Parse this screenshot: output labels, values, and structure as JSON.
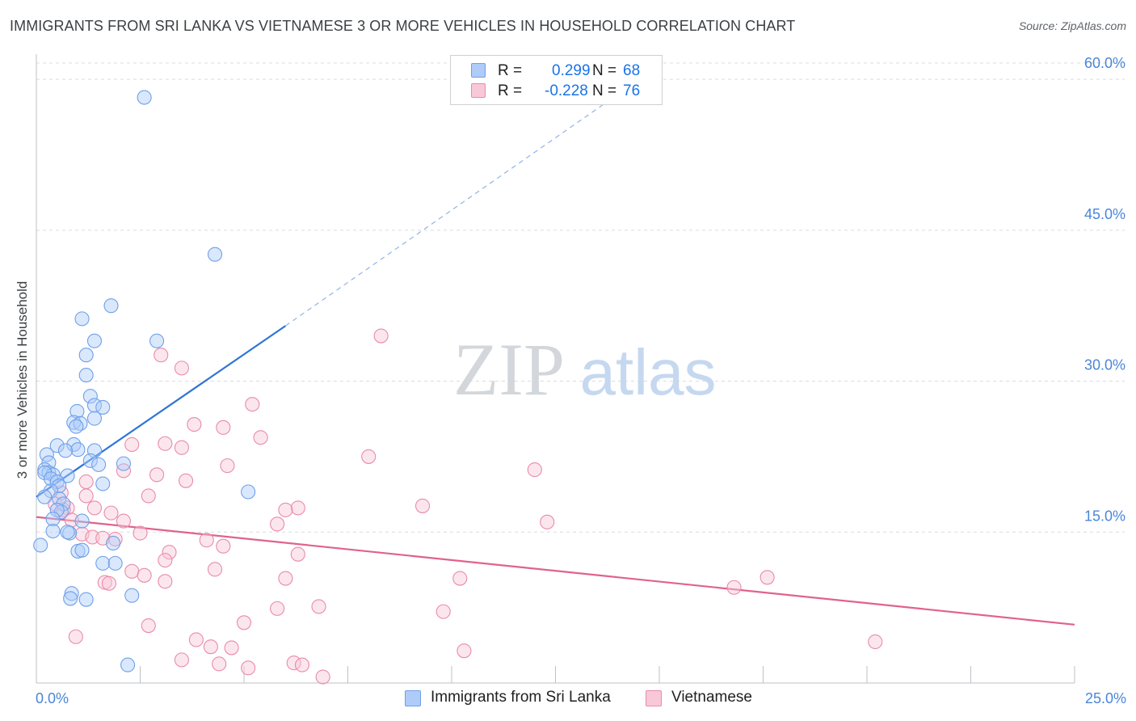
{
  "title": "IMMIGRANTS FROM SRI LANKA VS VIETNAMESE 3 OR MORE VEHICLES IN HOUSEHOLD CORRELATION CHART",
  "source": "Source: ZipAtlas.com",
  "watermark": {
    "zip": "ZIP",
    "atlas": "atlas"
  },
  "legend": {
    "r_label": "R =",
    "n_label": "N =",
    "series": [
      {
        "name": "Immigrants from Sri Lanka",
        "r": "0.299",
        "n": "68",
        "fill": "#aecbfa",
        "stroke": "#6fa0e8"
      },
      {
        "name": "Vietnamese",
        "r": "-0.228",
        "n": "76",
        "fill": "#f8c8d8",
        "stroke": "#e98ba9"
      }
    ]
  },
  "chart_data": {
    "type": "scatter",
    "title": "IMMIGRANTS FROM SRI LANKA VS VIETNAMESE 3 OR MORE VEHICLES IN HOUSEHOLD CORRELATION CHART",
    "xlabel": "",
    "ylabel": "3 or more Vehicles in Household",
    "xlim": [
      0,
      25
    ],
    "ylim": [
      0,
      62.5
    ],
    "x_tick_labels": [
      {
        "value": 0,
        "label": "0.0%"
      },
      {
        "value": 25,
        "label": "25.0%"
      }
    ],
    "x_minor_ticks": [
      2.5,
      5,
      7.5,
      10,
      12.5,
      15,
      17.5,
      20,
      22.5,
      25
    ],
    "y_ticks": [
      {
        "value": 15,
        "label": "15.0%"
      },
      {
        "value": 30,
        "label": "30.0%"
      },
      {
        "value": 45,
        "label": "45.0%"
      },
      {
        "value": 60,
        "label": "60.0%"
      }
    ],
    "grid": true,
    "series": [
      {
        "name": "Immigrants from Sri Lanka",
        "color": "#6fa0e8",
        "line_color": "#2e74d6",
        "points": [
          [
            2.6,
            58.2
          ],
          [
            4.3,
            42.6
          ],
          [
            1.8,
            37.5
          ],
          [
            1.1,
            36.2
          ],
          [
            1.4,
            34.0
          ],
          [
            2.9,
            34.0
          ],
          [
            1.2,
            32.6
          ],
          [
            1.2,
            30.6
          ],
          [
            1.3,
            28.5
          ],
          [
            1.4,
            27.6
          ],
          [
            1.6,
            27.4
          ],
          [
            0.98,
            27.0
          ],
          [
            1.4,
            26.3
          ],
          [
            0.9,
            25.9
          ],
          [
            1.06,
            25.8
          ],
          [
            0.96,
            25.5
          ],
          [
            0.5,
            23.6
          ],
          [
            0.9,
            23.7
          ],
          [
            1.0,
            23.2
          ],
          [
            1.4,
            23.1
          ],
          [
            0.7,
            23.1
          ],
          [
            0.25,
            22.7
          ],
          [
            0.3,
            21.9
          ],
          [
            1.3,
            22.1
          ],
          [
            2.1,
            21.8
          ],
          [
            1.5,
            21.7
          ],
          [
            0.2,
            21.2
          ],
          [
            0.3,
            20.9
          ],
          [
            0.4,
            20.7
          ],
          [
            0.2,
            20.9
          ],
          [
            0.75,
            20.6
          ],
          [
            0.35,
            20.3
          ],
          [
            0.5,
            20.0
          ],
          [
            1.6,
            19.8
          ],
          [
            0.55,
            19.6
          ],
          [
            0.35,
            19.1
          ],
          [
            5.1,
            19.0
          ],
          [
            0.2,
            18.5
          ],
          [
            0.55,
            18.3
          ],
          [
            0.65,
            17.8
          ],
          [
            0.6,
            17.0
          ],
          [
            0.5,
            17.2
          ],
          [
            0.4,
            16.3
          ],
          [
            1.1,
            16.1
          ],
          [
            0.4,
            15.1
          ],
          [
            0.8,
            14.9
          ],
          [
            0.75,
            15.0
          ],
          [
            1.85,
            13.9
          ],
          [
            0.1,
            13.7
          ],
          [
            1.0,
            13.1
          ],
          [
            1.1,
            13.2
          ],
          [
            1.6,
            11.9
          ],
          [
            1.9,
            11.9
          ],
          [
            0.85,
            8.9
          ],
          [
            0.82,
            8.4
          ],
          [
            1.2,
            8.3
          ],
          [
            2.3,
            8.7
          ],
          [
            2.2,
            1.8
          ]
        ],
        "trend": {
          "x0": 0,
          "y0": 18.5,
          "x1": 6.0,
          "y1": 35.5,
          "dash_to_x": 14.0,
          "dash_to_y": 58.5
        }
      },
      {
        "name": "Vietnamese",
        "color": "#e98ba9",
        "line_color": "#e0628f",
        "points": [
          [
            8.3,
            34.5
          ],
          [
            3.0,
            32.6
          ],
          [
            3.5,
            31.3
          ],
          [
            5.2,
            27.7
          ],
          [
            3.8,
            25.7
          ],
          [
            4.5,
            25.4
          ],
          [
            5.4,
            24.4
          ],
          [
            2.3,
            23.7
          ],
          [
            3.1,
            23.8
          ],
          [
            3.5,
            23.4
          ],
          [
            8.0,
            22.5
          ],
          [
            4.6,
            21.6
          ],
          [
            2.1,
            21.1
          ],
          [
            12.0,
            21.2
          ],
          [
            2.9,
            20.7
          ],
          [
            3.6,
            20.1
          ],
          [
            1.2,
            20.0
          ],
          [
            0.6,
            18.9
          ],
          [
            1.2,
            18.6
          ],
          [
            2.7,
            18.6
          ],
          [
            0.75,
            17.4
          ],
          [
            0.65,
            17.2
          ],
          [
            0.45,
            17.8
          ],
          [
            1.4,
            17.4
          ],
          [
            9.3,
            17.6
          ],
          [
            6.3,
            17.4
          ],
          [
            6.0,
            17.2
          ],
          [
            1.8,
            16.9
          ],
          [
            2.1,
            16.1
          ],
          [
            5.8,
            15.8
          ],
          [
            12.3,
            16.0
          ],
          [
            0.85,
            16.2
          ],
          [
            2.5,
            14.9
          ],
          [
            1.1,
            14.8
          ],
          [
            1.35,
            14.5
          ],
          [
            1.6,
            14.4
          ],
          [
            1.9,
            14.3
          ],
          [
            4.1,
            14.2
          ],
          [
            4.5,
            13.6
          ],
          [
            3.2,
            13.0
          ],
          [
            6.3,
            12.8
          ],
          [
            3.1,
            12.2
          ],
          [
            4.3,
            11.3
          ],
          [
            2.3,
            11.1
          ],
          [
            2.6,
            10.7
          ],
          [
            6.0,
            10.4
          ],
          [
            3.1,
            10.1
          ],
          [
            1.65,
            10.0
          ],
          [
            10.2,
            10.4
          ],
          [
            1.75,
            9.9
          ],
          [
            16.8,
            9.5
          ],
          [
            17.6,
            10.5
          ],
          [
            6.8,
            7.6
          ],
          [
            5.8,
            7.4
          ],
          [
            9.8,
            7.1
          ],
          [
            2.7,
            5.7
          ],
          [
            5.0,
            6.0
          ],
          [
            0.95,
            4.6
          ],
          [
            3.85,
            4.3
          ],
          [
            4.2,
            3.6
          ],
          [
            4.7,
            3.5
          ],
          [
            10.3,
            3.2
          ],
          [
            20.2,
            4.1
          ],
          [
            3.5,
            2.3
          ],
          [
            6.2,
            2.0
          ],
          [
            6.4,
            1.8
          ],
          [
            4.4,
            1.9
          ],
          [
            5.1,
            1.5
          ],
          [
            6.9,
            0.6
          ]
        ],
        "trend": {
          "x0": 0,
          "y0": 16.5,
          "x1": 25.0,
          "y1": 5.8
        }
      }
    ]
  }
}
